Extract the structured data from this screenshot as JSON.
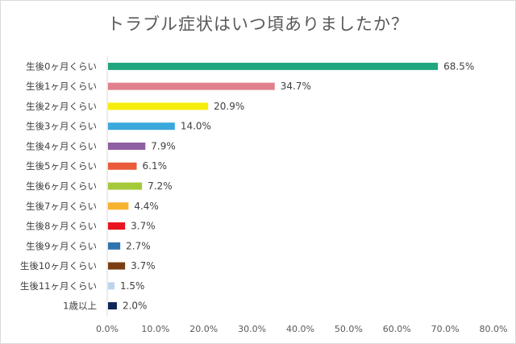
{
  "chart_data": {
    "type": "bar",
    "orientation": "horizontal",
    "title": "トラブル症状はいつ頃ありましたか？",
    "categories": [
      "生後0ヶ月くらい",
      "生後1ヶ月くらい",
      "生後2ヶ月くらい",
      "生後3ヶ月くらい",
      "生後4ヶ月くらい",
      "生後5ヶ月くらい",
      "生後6ヶ月くらい",
      "生後7ヶ月くらい",
      "生後8ヶ月くらい",
      "生後9ヶ月くらい",
      "生後10ヶ月くらい",
      "生後11ヶ月くらい",
      "1歳以上"
    ],
    "values": [
      68.5,
      34.7,
      20.9,
      14.0,
      7.9,
      6.1,
      7.2,
      4.4,
      3.7,
      2.7,
      3.7,
      1.5,
      2.0
    ],
    "value_labels": [
      "68.5%",
      "34.7%",
      "20.9%",
      "14.0%",
      "7.9%",
      "6.1%",
      "7.2%",
      "4.4%",
      "3.7%",
      "2.7%",
      "3.7%",
      "1.5%",
      "2.0%"
    ],
    "colors": [
      "#20a67e",
      "#e0808c",
      "#f5ee0c",
      "#39a8dc",
      "#8e5ea2",
      "#e95b3a",
      "#a4c93b",
      "#f7b230",
      "#e9141d",
      "#2e75b0",
      "#7b3e12",
      "#bcd4ec",
      "#0f2557"
    ],
    "xlim": [
      0,
      80
    ],
    "x_ticks": [
      "0.0%",
      "10.0%",
      "20.0%",
      "30.0%",
      "40.0%",
      "50.0%",
      "60.0%",
      "70.0%",
      "80.0%"
    ],
    "grid": false,
    "legend": "none"
  }
}
